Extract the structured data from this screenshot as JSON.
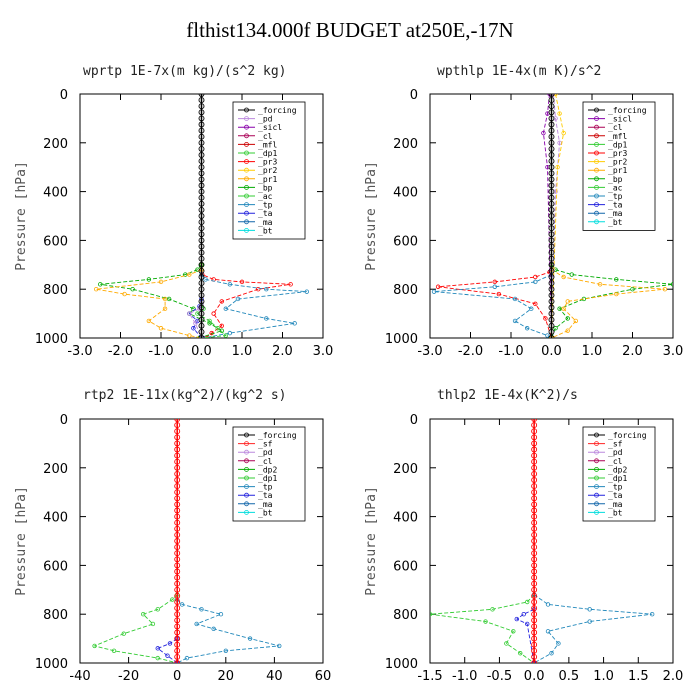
{
  "title": "flthist134.000f  BUDGET at250E,-17N",
  "chart_data": [
    {
      "type": "line",
      "panel": "wprtp",
      "title": "wprtp   1E-7x(m kg)/(s^2 kg)",
      "ylabel": "Pressure [hPa]",
      "xlim": [
        -3.0,
        3.0
      ],
      "ylim": [
        1000,
        0
      ],
      "xticks": [
        -3.0,
        -2.0,
        -1.0,
        0.0,
        1.0,
        2.0,
        3.0
      ],
      "xtick_labels": [
        "-3.0",
        "-2.0",
        "-1.0",
        "0.0",
        "1.0",
        "2.0",
        "3.0"
      ],
      "yticks": [
        0,
        200,
        400,
        600,
        800,
        1000
      ],
      "legend_position": "top-right",
      "legend": [
        "_forcing",
        "_pd",
        "_sicl",
        "_cl",
        "_mfl",
        "_dp1",
        "_pr3",
        "_pr2",
        "_pr1",
        "_bp",
        "_ac",
        "_tp",
        "_ta",
        "_ma",
        "_bt"
      ],
      "series": [
        {
          "name": "_pr3",
          "color": "#ff0000",
          "x": [
            0,
            0.02,
            0.3,
            1.0,
            2.2,
            1.4,
            0.5,
            0.3,
            0.5,
            0.25,
            0.1
          ],
          "y": [
            700,
            740,
            760,
            770,
            780,
            800,
            850,
            900,
            950,
            980,
            1000
          ]
        },
        {
          "name": "_bp",
          "color": "#00aa00",
          "x": [
            0,
            -0.1,
            -0.4,
            -1.3,
            -2.5,
            -1.7,
            -0.8,
            -0.2,
            -0.3,
            0.2,
            0.5,
            -0.05
          ],
          "y": [
            700,
            720,
            740,
            760,
            780,
            800,
            840,
            880,
            900,
            940,
            970,
            1000
          ]
        },
        {
          "name": "_pr1",
          "color": "#ffaa00",
          "x": [
            0,
            -0.3,
            -1.0,
            -2.6,
            -1.9,
            -0.9,
            -0.9,
            -1.3,
            -1.0,
            -0.3,
            0
          ],
          "y": [
            720,
            740,
            770,
            800,
            820,
            840,
            880,
            930,
            960,
            990,
            1000
          ]
        },
        {
          "name": "_tp",
          "color": "#2288bb",
          "x": [
            0,
            0.1,
            0.7,
            1.6,
            2.6,
            0.9,
            0.6,
            1.6,
            2.3,
            0.7,
            0.05
          ],
          "y": [
            740,
            760,
            780,
            800,
            810,
            840,
            880,
            920,
            940,
            980,
            1000
          ]
        },
        {
          "name": "_ta",
          "color": "#2222dd",
          "x": [
            0,
            -0.05,
            -0.3,
            -0.1,
            -0.2,
            0
          ],
          "y": [
            840,
            870,
            900,
            930,
            960,
            1000
          ]
        },
        {
          "name": "_ac",
          "color": "#33cc33",
          "x": [
            0,
            0.05,
            -0.1,
            0.2,
            0.4,
            0.6,
            0
          ],
          "y": [
            860,
            880,
            900,
            930,
            960,
            990,
            1000
          ]
        },
        {
          "name": "_pd",
          "color": "#bb88dd",
          "x": [
            0,
            -0.05,
            -0.3,
            -0.15,
            0
          ],
          "y": [
            860,
            880,
            900,
            940,
            1000
          ]
        },
        {
          "name": "_forcing",
          "color": "#000000",
          "x": [
            0,
            0
          ],
          "y": [
            0,
            1000
          ]
        }
      ]
    },
    {
      "type": "line",
      "panel": "wpthlp",
      "title": "wpthlp   1E-4x(m K)/s^2",
      "ylabel": "Pressure [hPa]",
      "xlim": [
        -3.0,
        3.0
      ],
      "ylim": [
        1000,
        0
      ],
      "xticks": [
        -3.0,
        -2.0,
        -1.0,
        0.0,
        1.0,
        2.0,
        3.0
      ],
      "xtick_labels": [
        "-3.0",
        "-2.0",
        "-1.0",
        "0.0",
        "1.0",
        "2.0",
        "3.0"
      ],
      "yticks": [
        0,
        200,
        400,
        600,
        800,
        1000
      ],
      "legend_position": "top-right",
      "legend": [
        "_forcing",
        "_sicl",
        "_cl",
        "_mfl",
        "_dp1",
        "_pr3",
        "_pr2",
        "_pr1",
        "_bp",
        "_ac",
        "_tp",
        "_ta",
        "_ma",
        "_bt"
      ],
      "series": [
        {
          "name": "_pr3",
          "color": "#ff0000",
          "x": [
            0,
            -0.05,
            -0.4,
            -1.4,
            -2.8,
            -1.3,
            -0.4,
            -0.15,
            0
          ],
          "y": [
            700,
            730,
            750,
            770,
            790,
            820,
            860,
            920,
            1000
          ]
        },
        {
          "name": "_bp",
          "color": "#00aa00",
          "x": [
            0,
            0.1,
            0.5,
            1.6,
            3.0,
            2.0,
            0.8,
            0.2,
            0.4,
            0.1,
            0
          ],
          "y": [
            700,
            720,
            740,
            760,
            780,
            800,
            840,
            880,
            920,
            960,
            1000
          ]
        },
        {
          "name": "_pr1",
          "color": "#ffaa00",
          "x": [
            0,
            0.3,
            1.2,
            2.8,
            1.6,
            0.4,
            0.3,
            0.6,
            0.4,
            0
          ],
          "y": [
            720,
            750,
            780,
            800,
            820,
            850,
            880,
            930,
            970,
            1000
          ]
        },
        {
          "name": "_tp",
          "color": "#2288bb",
          "x": [
            0,
            -0.4,
            -1.4,
            -2.9,
            -0.9,
            -0.5,
            -0.9,
            -0.6,
            -0.1,
            0
          ],
          "y": [
            740,
            770,
            790,
            810,
            840,
            880,
            930,
            960,
            990,
            1000
          ]
        },
        {
          "name": "_pd",
          "color": "#bb88dd",
          "x": [
            0.05,
            0.1,
            0.2,
            0.1,
            0
          ],
          "y": [
            0,
            100,
            200,
            400,
            1000
          ]
        },
        {
          "name": "_sicl",
          "color": "#8800aa",
          "x": [
            -0.05,
            -0.1,
            -0.2,
            -0.1,
            0
          ],
          "y": [
            0,
            80,
            160,
            300,
            1000
          ]
        },
        {
          "name": "_pr2",
          "color": "#ffcc00",
          "x": [
            0.1,
            0.2,
            0.3,
            0.15,
            0
          ],
          "y": [
            0,
            80,
            160,
            300,
            1000
          ]
        },
        {
          "name": "_forcing",
          "color": "#000000",
          "x": [
            0,
            0
          ],
          "y": [
            0,
            1000
          ]
        }
      ]
    },
    {
      "type": "line",
      "panel": "rtp2",
      "title": "rtp2   1E-11x(kg^2)/(kg^2 s)",
      "ylabel": "Pressure [hPa]",
      "xlim": [
        -40,
        60
      ],
      "ylim": [
        1000,
        0
      ],
      "xticks": [
        -40,
        -20,
        0,
        20,
        40,
        60
      ],
      "xtick_labels": [
        "-40",
        "-20",
        "0",
        "20",
        "40",
        "60"
      ],
      "yticks": [
        0,
        200,
        400,
        600,
        800,
        1000
      ],
      "legend_position": "top-right",
      "legend": [
        "_forcing",
        "_sf",
        "_pd",
        "_cl",
        "_dp2",
        "_dp1",
        "_tp",
        "_ta",
        "_ma",
        "_bt"
      ],
      "series": [
        {
          "name": "_dp1",
          "color": "#33cc33",
          "x": [
            0,
            -2,
            -8,
            -14,
            -10,
            -22,
            -34,
            -26,
            -8,
            0
          ],
          "y": [
            720,
            740,
            780,
            800,
            840,
            880,
            930,
            950,
            980,
            1000
          ]
        },
        {
          "name": "_tp",
          "color": "#2288bb",
          "x": [
            0,
            2,
            10,
            18,
            8,
            15,
            30,
            42,
            20,
            4,
            0
          ],
          "y": [
            740,
            760,
            780,
            800,
            840,
            860,
            900,
            930,
            950,
            980,
            1000
          ]
        },
        {
          "name": "_ta",
          "color": "#2222dd",
          "x": [
            0,
            -3,
            -8,
            -4,
            0
          ],
          "y": [
            900,
            920,
            940,
            970,
            1000
          ]
        },
        {
          "name": "_forcing",
          "color": "#ff0000",
          "x": [
            0,
            0
          ],
          "y": [
            0,
            1000
          ]
        }
      ]
    },
    {
      "type": "line",
      "panel": "thlp2",
      "title": "thlp2   1E-4x(K^2)/s",
      "ylabel": "Pressure [hPa]",
      "xlim": [
        -1.5,
        2.0
      ],
      "ylim": [
        1000,
        0
      ],
      "xticks": [
        -1.5,
        -1.0,
        -0.5,
        0.0,
        0.5,
        1.0,
        1.5,
        2.0
      ],
      "xtick_labels": [
        "-1.5",
        "-1.0",
        "-0.5",
        "0.0",
        "0.5",
        "1.0",
        "1.5",
        "2.0"
      ],
      "yticks": [
        0,
        200,
        400,
        600,
        800,
        1000
      ],
      "legend_position": "top-right",
      "legend": [
        "_forcing",
        "_sf",
        "_pd",
        "_cl",
        "_dp2",
        "_dp1",
        "_tp",
        "_ta",
        "_ma",
        "_bt"
      ],
      "series": [
        {
          "name": "_dp1",
          "color": "#33cc33",
          "x": [
            0,
            -0.1,
            -0.6,
            -1.5,
            -0.7,
            -0.3,
            -0.4,
            -0.2,
            0
          ],
          "y": [
            720,
            750,
            780,
            800,
            830,
            870,
            920,
            960,
            1000
          ]
        },
        {
          "name": "_tp",
          "color": "#2288bb",
          "x": [
            0,
            0.2,
            0.8,
            1.7,
            0.8,
            0.2,
            0.35,
            0.25,
            0
          ],
          "y": [
            720,
            760,
            780,
            800,
            830,
            870,
            920,
            960,
            1000
          ]
        },
        {
          "name": "_ta",
          "color": "#2222dd",
          "x": [
            0,
            -0.15,
            -0.25,
            -0.1,
            0
          ],
          "y": [
            780,
            800,
            820,
            840,
            1000
          ]
        },
        {
          "name": "_forcing",
          "color": "#ff0000",
          "x": [
            0,
            0
          ],
          "y": [
            0,
            1000
          ]
        }
      ]
    }
  ]
}
